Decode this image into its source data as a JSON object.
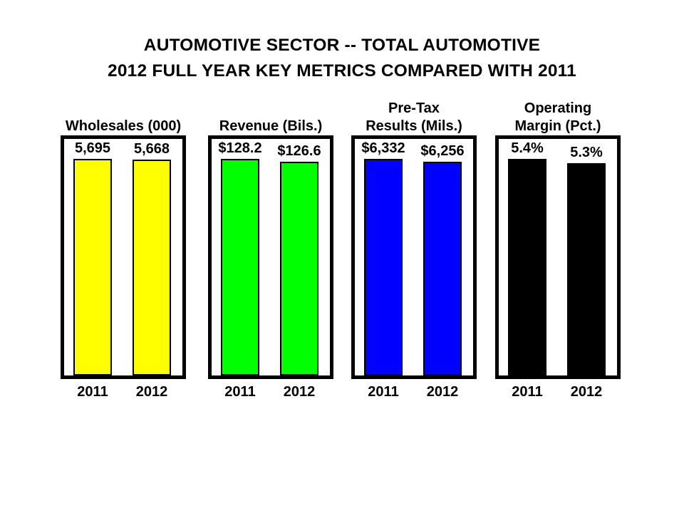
{
  "page_title": {
    "line1": "AUTOMOTIVE SECTOR -- TOTAL AUTOMOTIVE",
    "line2": "2012 FULL YEAR KEY METRICS COMPARED WITH 2011"
  },
  "chart_data": {
    "type": "bar",
    "categories": [
      "2011",
      "2012"
    ],
    "grid": false,
    "legend_position": "none",
    "panels": [
      {
        "title": "Wholesales (000)",
        "title_lines": [
          "Wholesales (000)"
        ],
        "values": [
          5695,
          5668
        ],
        "value_labels": [
          "5,695",
          "5,668"
        ],
        "bar_color": "#FFFF00"
      },
      {
        "title": "Revenue (Bils.)",
        "title_lines": [
          "Revenue (Bils.)"
        ],
        "values": [
          128.2,
          126.6
        ],
        "value_labels": [
          "$128.2",
          "$126.6"
        ],
        "bar_color": "#00FF00"
      },
      {
        "title": "Pre-Tax Results (Mils.)",
        "title_lines": [
          "Pre-Tax",
          "Results (Mils.)"
        ],
        "values": [
          6332,
          6256
        ],
        "value_labels": [
          "$6,332",
          "$6,256"
        ],
        "bar_color": "#0000FF"
      },
      {
        "title": "Operating Margin (Pct.)",
        "title_lines": [
          "Operating",
          "Margin (Pct.)"
        ],
        "values": [
          5.4,
          5.3
        ],
        "value_labels": [
          "5.4%",
          "5.3%"
        ],
        "bar_color": "#000000"
      }
    ]
  }
}
